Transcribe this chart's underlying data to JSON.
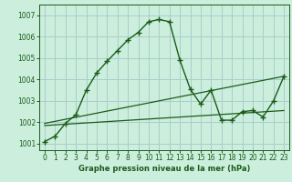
{
  "title": "Graphe pression niveau de la mer (hPa)",
  "background_color": "#cceedd",
  "grid_color": "#aacccc",
  "line_color": "#1a5c1a",
  "xlim": [
    -0.5,
    23.5
  ],
  "ylim": [
    1000.7,
    1007.5
  ],
  "xticks": [
    0,
    1,
    2,
    3,
    4,
    5,
    6,
    7,
    8,
    9,
    10,
    11,
    12,
    13,
    14,
    15,
    16,
    17,
    18,
    19,
    20,
    21,
    22,
    23
  ],
  "yticks": [
    1001,
    1002,
    1003,
    1004,
    1005,
    1006,
    1007
  ],
  "series1_x": [
    0,
    1,
    2,
    3,
    4,
    5,
    6,
    7,
    8,
    9,
    10,
    11,
    12,
    13,
    14,
    15,
    16,
    17,
    18,
    19,
    20,
    21,
    22,
    23
  ],
  "series1_y": [
    1001.1,
    1001.35,
    1001.95,
    1002.35,
    1003.5,
    1004.3,
    1004.85,
    1005.35,
    1005.85,
    1006.2,
    1006.7,
    1006.8,
    1006.7,
    1004.9,
    1003.55,
    1002.85,
    1003.5,
    1002.1,
    1002.1,
    1002.5,
    1002.55,
    1002.25,
    1003.0,
    1004.15
  ],
  "series2_x": [
    0,
    23
  ],
  "series2_y": [
    1001.85,
    1002.55
  ],
  "series3_x": [
    0,
    23
  ],
  "series3_y": [
    1001.95,
    1004.15
  ]
}
